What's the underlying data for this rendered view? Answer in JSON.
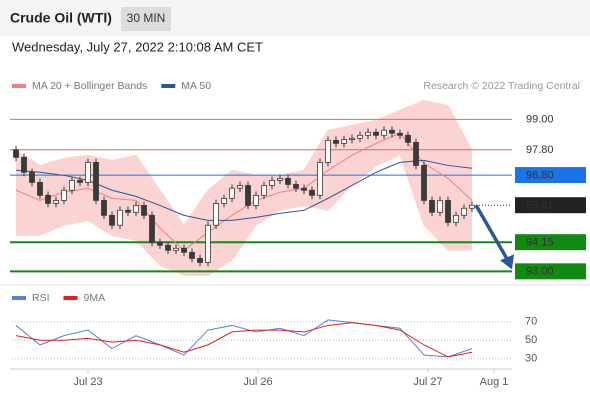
{
  "header": {
    "title": "Crude Oil (WTI)",
    "interval": "30 MIN",
    "timestamp": "Wednesday, July 27, 2022 2:10:08 AM CET",
    "source": "Research © 2022 Trading Central"
  },
  "chart_data": [
    {
      "type": "candlestick",
      "x": [
        1,
        3,
        5,
        7,
        9,
        11,
        13,
        15,
        17,
        19,
        21,
        23,
        25,
        27,
        29,
        31,
        33,
        35,
        37,
        39,
        41,
        43,
        45,
        47,
        49,
        51,
        53,
        55,
        57,
        59,
        61,
        63,
        65,
        67,
        69,
        71,
        73,
        75,
        77,
        79,
        81,
        83,
        85,
        87,
        89,
        91,
        93,
        95,
        97,
        99,
        101,
        103,
        105,
        107,
        109,
        111,
        113,
        115
      ],
      "open": [
        97.8,
        97.5,
        96.91,
        96.51,
        96.0,
        95.68,
        95.8,
        96.2,
        96.59,
        96.51,
        97.3,
        95.8,
        95.21,
        94.82,
        95.41,
        95.33,
        95.6,
        95.21,
        94.14,
        94.03,
        93.83,
        93.91,
        93.75,
        93.51,
        93.35,
        94.82,
        95.68,
        95.88,
        96.28,
        96.39,
        95.6,
        96.0,
        96.39,
        96.59,
        96.67,
        96.43,
        96.28,
        96.2,
        96.0,
        97.3,
        98.17,
        98.05,
        98.2,
        98.25,
        98.37,
        98.49,
        98.37,
        98.57,
        98.45,
        98.37,
        98.09,
        97.18,
        95.8,
        95.33,
        95.8,
        94.93,
        95.21,
        95.49
      ],
      "high": [
        97.95,
        97.65,
        97.06,
        96.66,
        96.15,
        95.95,
        96.35,
        96.74,
        96.74,
        97.45,
        97.45,
        95.95,
        95.36,
        95.56,
        95.56,
        95.75,
        95.75,
        95.36,
        94.29,
        94.18,
        94.06,
        94.06,
        93.9,
        93.66,
        94.97,
        95.83,
        96.03,
        96.43,
        96.54,
        96.54,
        96.15,
        96.54,
        96.74,
        96.82,
        96.82,
        96.58,
        96.43,
        96.35,
        97.45,
        98.32,
        98.32,
        98.35,
        98.4,
        98.52,
        98.64,
        98.64,
        98.72,
        98.72,
        98.6,
        98.52,
        98.24,
        97.33,
        95.95,
        95.95,
        95.95,
        95.36,
        95.64,
        95.76
      ],
      "low": [
        97.35,
        96.76,
        96.36,
        95.85,
        95.53,
        95.53,
        95.65,
        96.05,
        96.36,
        96.36,
        95.65,
        95.06,
        94.67,
        94.67,
        95.18,
        95.18,
        95.06,
        93.99,
        93.88,
        93.68,
        93.68,
        93.6,
        93.36,
        93.2,
        93.2,
        94.67,
        95.53,
        95.73,
        96.13,
        95.45,
        95.45,
        95.85,
        96.24,
        96.44,
        96.28,
        96.13,
        96.05,
        95.85,
        95.85,
        97.15,
        97.9,
        97.9,
        98.05,
        98.1,
        98.22,
        98.22,
        98.22,
        98.3,
        98.22,
        97.94,
        97.03,
        95.65,
        95.18,
        95.18,
        94.78,
        94.78,
        95.06,
        95.34
      ],
      "close": [
        97.5,
        96.91,
        96.51,
        96.0,
        95.68,
        95.8,
        96.2,
        96.59,
        96.51,
        97.3,
        95.8,
        95.21,
        94.82,
        95.41,
        95.33,
        95.6,
        95.21,
        94.14,
        94.03,
        93.83,
        93.91,
        93.75,
        93.51,
        93.35,
        94.82,
        95.68,
        95.88,
        96.28,
        96.39,
        95.6,
        96.0,
        96.39,
        96.59,
        96.67,
        96.43,
        96.28,
        96.2,
        96.0,
        97.3,
        98.17,
        98.05,
        98.2,
        98.25,
        98.37,
        98.49,
        98.37,
        98.57,
        98.45,
        98.37,
        98.09,
        97.18,
        95.8,
        95.33,
        95.8,
        94.93,
        95.21,
        95.49,
        95.61
      ],
      "up_color": "#ffffff",
      "down_color": "#3a3a3a",
      "wick_color": "#3a3a3a",
      "xlim": [
        0,
        125
      ],
      "ylim": [
        92.5,
        100
      ],
      "series": [
        {
          "name": "MA 20 + Bollinger Bands",
          "color": "#f08080",
          "band_color": "#fbd3d3",
          "x": [
            1,
            7,
            13,
            19,
            25,
            31,
            37,
            43,
            49,
            55,
            61,
            67,
            73,
            79,
            85,
            91,
            97,
            103,
            109,
            115
          ],
          "values": [
            96.2,
            95.8,
            96.12,
            96.28,
            95.88,
            95.8,
            94.7,
            93.83,
            94.54,
            95.21,
            95.8,
            96.12,
            96.28,
            96.99,
            97.58,
            98.05,
            98.45,
            97.26,
            96.67,
            95.8
          ],
          "upper": [
            97.78,
            97.18,
            97.46,
            97.58,
            97.38,
            97.58,
            96.2,
            94.82,
            96.2,
            96.99,
            96.79,
            96.79,
            96.99,
            98.57,
            98.76,
            98.96,
            99.36,
            99.75,
            99.55,
            97.78
          ],
          "lower": [
            94.42,
            94.42,
            94.82,
            95.01,
            94.42,
            94.22,
            93.24,
            92.84,
            92.84,
            93.43,
            94.82,
            95.41,
            95.6,
            95.41,
            96.39,
            97.18,
            97.58,
            94.82,
            93.83,
            93.83
          ]
        },
        {
          "name": "MA 50",
          "color": "#2b5797",
          "x": [
            1,
            7,
            13,
            19,
            25,
            31,
            37,
            43,
            49,
            55,
            61,
            67,
            73,
            79,
            85,
            91,
            97,
            103,
            109,
            115
          ],
          "values": [
            96.99,
            96.91,
            96.79,
            96.59,
            96.2,
            95.96,
            95.6,
            95.21,
            95.01,
            95.01,
            95.13,
            95.29,
            95.41,
            95.88,
            96.39,
            96.91,
            97.3,
            97.38,
            97.18,
            97.07
          ]
        }
      ],
      "levels": [
        {
          "value": 99.0,
          "label": "99.00",
          "color": "#e06666",
          "badge": false
        },
        {
          "value": 97.8,
          "label": "97.80",
          "color": "#e06666",
          "badge": false
        },
        {
          "value": 96.8,
          "label": "96.80",
          "color": "#1a73e8",
          "badge": true
        },
        {
          "value": 94.15,
          "label": "94.15",
          "color": "#128a12",
          "badge": true
        },
        {
          "value": 93.0,
          "label": "93.00",
          "color": "#128a12",
          "badge": true
        }
      ],
      "last": {
        "value": 95.61,
        "label": "95.61",
        "color": "#222222"
      },
      "target": {
        "value": 93.0,
        "color": "#2b5797"
      }
    },
    {
      "type": "line",
      "x": [
        1,
        7,
        13,
        19,
        25,
        31,
        37,
        43,
        49,
        55,
        61,
        67,
        73,
        79,
        85,
        91,
        97,
        103,
        109,
        115
      ],
      "series": [
        {
          "name": "RSI",
          "color": "#5a7fd8",
          "values": [
            66,
            45,
            55,
            61,
            41,
            55,
            45,
            34,
            61,
            66,
            59,
            63,
            55,
            72,
            69,
            66,
            63,
            34,
            32,
            41
          ]
        },
        {
          "name": "9MA",
          "color": "#e0201e",
          "values": [
            55,
            50,
            50,
            52,
            48,
            50,
            45,
            37,
            45,
            59,
            61,
            61,
            59,
            66,
            69,
            66,
            61,
            45,
            32,
            37
          ]
        }
      ],
      "xlim": [
        0,
        125
      ],
      "ylim": [
        20,
        80
      ],
      "yticks": [
        30,
        50,
        70
      ],
      "grid": true,
      "xticks": [
        {
          "value": 19,
          "label": "Jul 23"
        },
        {
          "value": 61.5,
          "label": "Jul 26"
        },
        {
          "value": 104,
          "label": "Jul 27"
        },
        {
          "value": 120.5,
          "label": "Aug 1"
        }
      ]
    }
  ]
}
